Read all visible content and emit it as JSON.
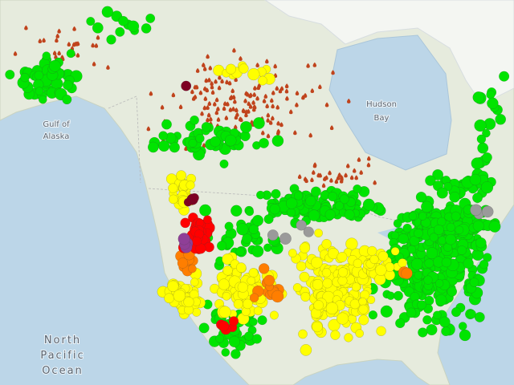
{
  "map": {
    "labels": [
      {
        "lines": [
          "Gulf of",
          "Alaska"
        ]
      },
      {
        "lines": [
          "Hudson",
          "Bay"
        ]
      },
      {
        "lines": [
          "North",
          "Pacific",
          "Ocean"
        ]
      }
    ]
  }
}
